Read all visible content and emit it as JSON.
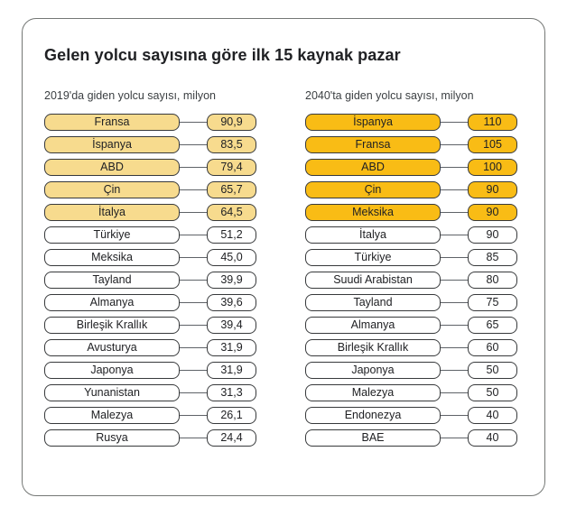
{
  "colors": {
    "highlight_2019": "#F7DB8E",
    "highlight_2040": "#F9BC15",
    "box_border": "#37393B",
    "connector": "#5F6368",
    "card_border": "#747775",
    "text": "#202124"
  },
  "chart_data": {
    "type": "table",
    "title": "Gelen yolcu sayısına göre ilk 15 kaynak pazar",
    "layout_hint": "two ranked list columns; top 5 rows of each column highlighted",
    "columns": [
      {
        "id": "2019",
        "subtitle": "2019'da giden yolcu sayısı, milyon",
        "highlight_color": "#F7DB8E",
        "rows": [
          {
            "label": "Fransa",
            "value": "90,9",
            "highlighted": true
          },
          {
            "label": "İspanya",
            "value": "83,5",
            "highlighted": true
          },
          {
            "label": "ABD",
            "value": "79,4",
            "highlighted": true
          },
          {
            "label": "Çin",
            "value": "65,7",
            "highlighted": true
          },
          {
            "label": "İtalya",
            "value": "64,5",
            "highlighted": true
          },
          {
            "label": "Türkiye",
            "value": "51,2",
            "highlighted": false
          },
          {
            "label": "Meksika",
            "value": "45,0",
            "highlighted": false
          },
          {
            "label": "Tayland",
            "value": "39,9",
            "highlighted": false
          },
          {
            "label": "Almanya",
            "value": "39,6",
            "highlighted": false
          },
          {
            "label": "Birleşik Krallık",
            "value": "39,4",
            "highlighted": false
          },
          {
            "label": "Avusturya",
            "value": "31,9",
            "highlighted": false
          },
          {
            "label": "Japonya",
            "value": "31,9",
            "highlighted": false
          },
          {
            "label": "Yunanistan",
            "value": "31,3",
            "highlighted": false
          },
          {
            "label": "Malezya",
            "value": "26,1",
            "highlighted": false
          },
          {
            "label": "Rusya",
            "value": "24,4",
            "highlighted": false
          }
        ]
      },
      {
        "id": "2040",
        "subtitle": "2040'ta giden yolcu sayısı, milyon",
        "highlight_color": "#F9BC15",
        "rows": [
          {
            "label": "İspanya",
            "value": "110",
            "highlighted": true
          },
          {
            "label": "Fransa",
            "value": "105",
            "highlighted": true
          },
          {
            "label": "ABD",
            "value": "100",
            "highlighted": true
          },
          {
            "label": "Çin",
            "value": "90",
            "highlighted": true
          },
          {
            "label": "Meksika",
            "value": "90",
            "highlighted": true
          },
          {
            "label": "İtalya",
            "value": "90",
            "highlighted": false
          },
          {
            "label": "Türkiye",
            "value": "85",
            "highlighted": false
          },
          {
            "label": "Suudi Arabistan",
            "value": "80",
            "highlighted": false
          },
          {
            "label": "Tayland",
            "value": "75",
            "highlighted": false
          },
          {
            "label": "Almanya",
            "value": "65",
            "highlighted": false
          },
          {
            "label": "Birleşik Krallık",
            "value": "60",
            "highlighted": false
          },
          {
            "label": "Japonya",
            "value": "50",
            "highlighted": false
          },
          {
            "label": "Malezya",
            "value": "50",
            "highlighted": false
          },
          {
            "label": "Endonezya",
            "value": "40",
            "highlighted": false
          },
          {
            "label": "BAE",
            "value": "40",
            "highlighted": false
          }
        ]
      }
    ]
  }
}
